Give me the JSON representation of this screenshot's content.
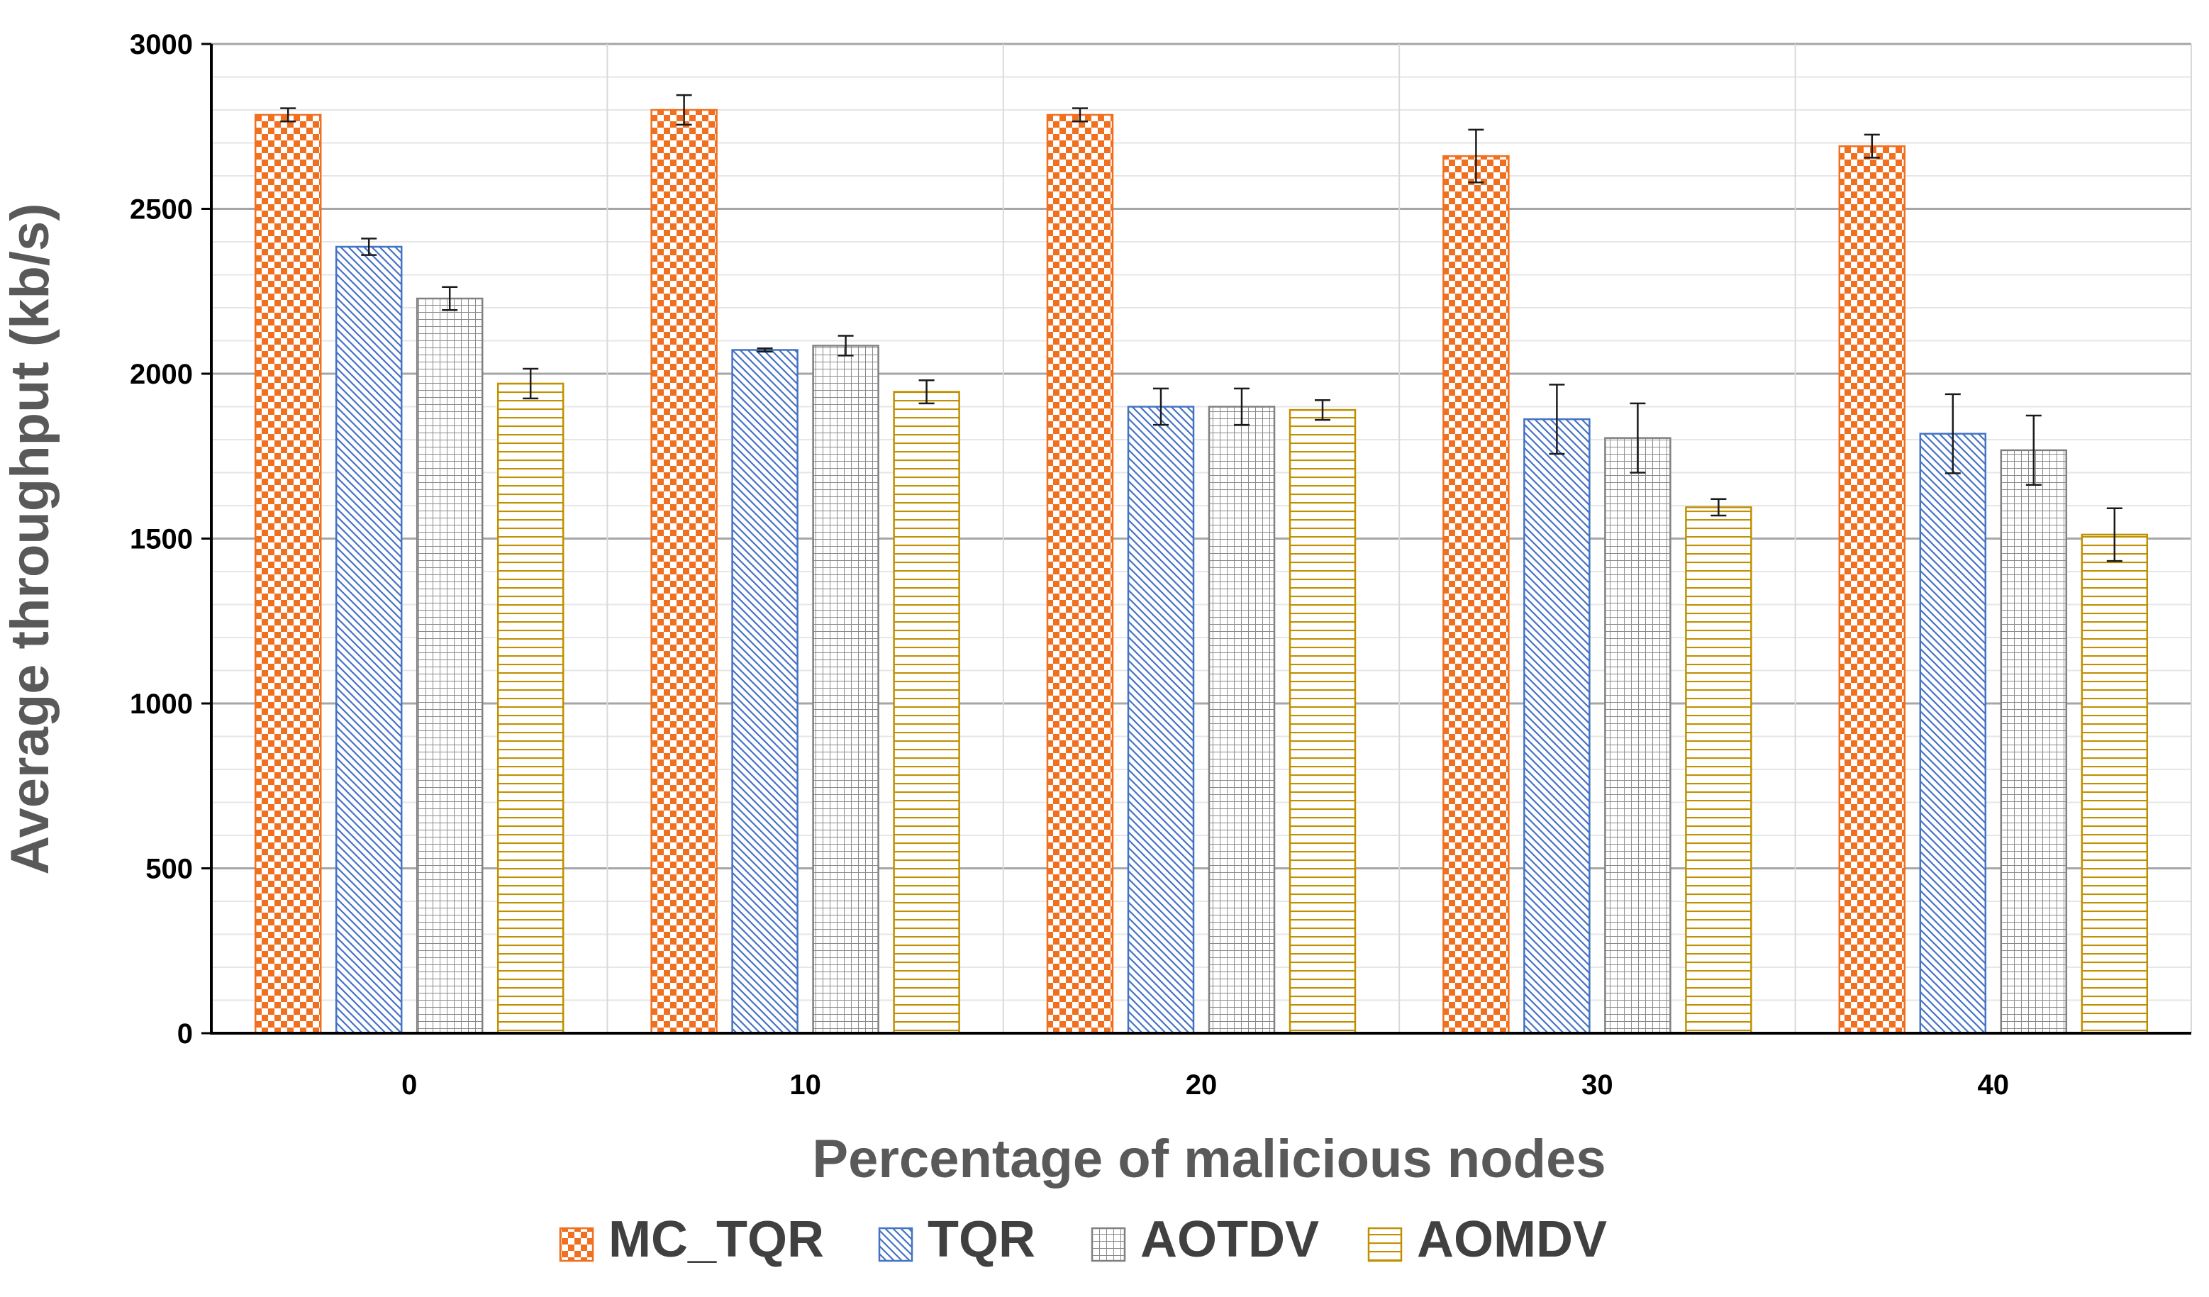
{
  "chart_data": {
    "type": "bar",
    "title": "",
    "xlabel": "Percentage of malicious nodes",
    "ylabel": "Average throughput (kb/s)",
    "categories": [
      "0",
      "10",
      "20",
      "30",
      "40"
    ],
    "ylim": [
      0,
      3000
    ],
    "yticks": [
      0,
      500,
      1000,
      1500,
      2000,
      2500,
      3000
    ],
    "grid": true,
    "legend_position": "bottom",
    "series": [
      {
        "name": "MC_TQR",
        "values": [
          2785,
          2800,
          2785,
          2660,
          2690
        ],
        "errors": [
          20,
          45,
          20,
          80,
          35
        ],
        "color": "#F0701F",
        "pattern": "checkerboard"
      },
      {
        "name": "TQR",
        "values": [
          2385,
          2072,
          1900,
          1862,
          1818
        ],
        "errors": [
          25,
          5,
          55,
          105,
          120
        ],
        "color": "#4472C4",
        "pattern": "diagonal-hatch"
      },
      {
        "name": "AOTDV",
        "values": [
          2228,
          2085,
          1900,
          1805,
          1768
        ],
        "errors": [
          35,
          30,
          55,
          105,
          105
        ],
        "color": "#808080",
        "pattern": "grid"
      },
      {
        "name": "AOMDV",
        "values": [
          1970,
          1945,
          1890,
          1595,
          1512
        ],
        "errors": [
          45,
          35,
          30,
          25,
          80
        ],
        "color": "#BF9000",
        "pattern": "horizontal-lines"
      }
    ]
  }
}
